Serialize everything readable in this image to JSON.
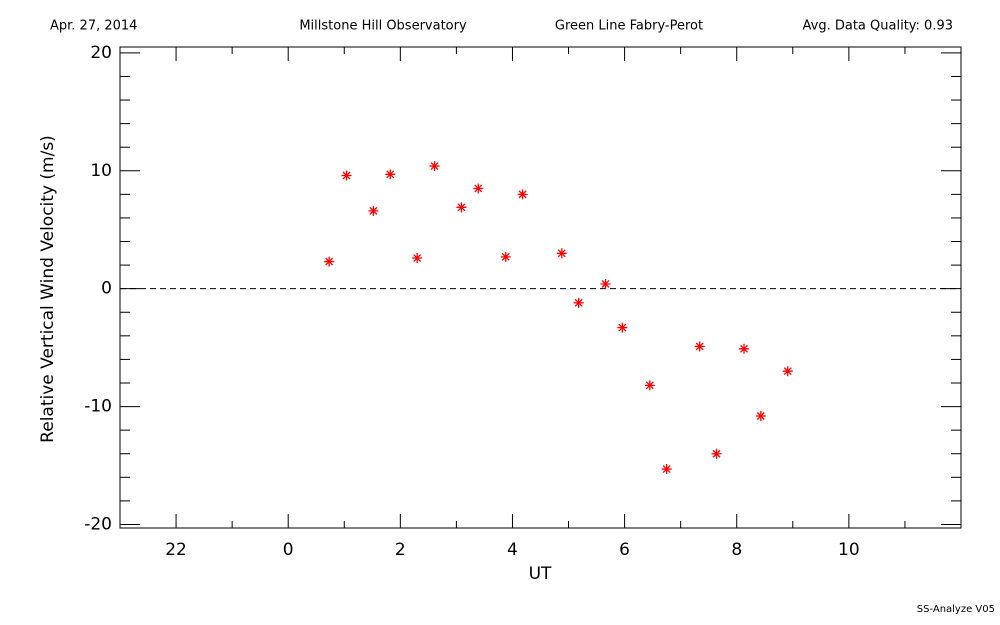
{
  "header": {
    "date": "Apr. 27, 2014",
    "observatory": "Millstone Hill Observatory",
    "instrument": "Green Line Fabry-Perot",
    "quality": "Avg. Data Quality: 0.93"
  },
  "footer": "SS-Analyze V05",
  "chart_data": {
    "type": "scatter",
    "x_label": "UT",
    "y_label": "Relative Vertical Wind Velocity (m/s)",
    "x": [
      0.73,
      1.04,
      1.52,
      1.82,
      2.3,
      2.61,
      3.09,
      3.39,
      3.88,
      4.18,
      4.88,
      5.18,
      5.66,
      5.96,
      6.45,
      6.75,
      7.34,
      7.64,
      8.13,
      8.43,
      8.91
    ],
    "values": [
      2.3,
      9.6,
      6.6,
      9.7,
      2.6,
      10.4,
      6.9,
      8.5,
      2.7,
      8.0,
      3.0,
      -1.2,
      0.4,
      -3.3,
      -8.2,
      -15.3,
      -4.9,
      -14.0,
      -5.1,
      -10.8,
      -7.0
    ],
    "color": "#ff0000",
    "xlim": [
      -3,
      12
    ],
    "xticks": [
      {
        "value": -2,
        "label": "22"
      },
      0,
      2,
      4,
      6,
      8,
      10
    ],
    "ylim": [
      -20.3,
      20.5
    ],
    "yticks": [
      -20,
      -10,
      0,
      10,
      20
    ],
    "reference_line": 0
  }
}
